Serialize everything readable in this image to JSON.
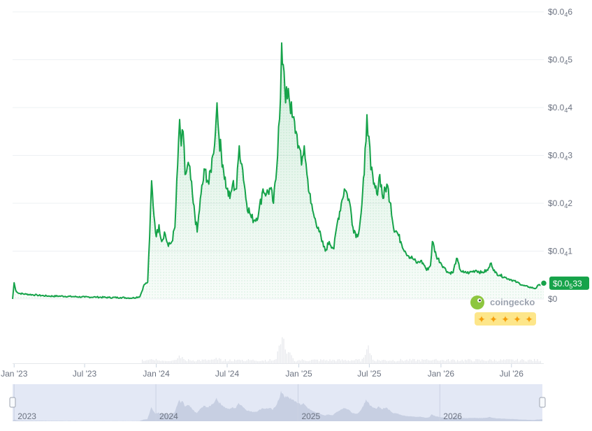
{
  "chart_data": {
    "type": "area",
    "title": "",
    "xlabel": "",
    "ylabel": "",
    "grid": true,
    "y_unit": "$",
    "y_tick_labels": [
      {
        "value": 0,
        "label": "$0"
      },
      {
        "value": 1,
        "prefix": "$0.0",
        "sub": "4",
        "suffix": "1"
      },
      {
        "value": 2,
        "prefix": "$0.0",
        "sub": "4",
        "suffix": "2"
      },
      {
        "value": 3,
        "prefix": "$0.0",
        "sub": "4",
        "suffix": "3"
      },
      {
        "value": 4,
        "prefix": "$0.0",
        "sub": "4",
        "suffix": "4"
      },
      {
        "value": 5,
        "prefix": "$0.0",
        "sub": "4",
        "suffix": "5"
      },
      {
        "value": 6,
        "prefix": "$0.0",
        "sub": "4",
        "suffix": "6"
      }
    ],
    "y_range_units_of_1e-5": [
      0,
      6
    ],
    "x_tick_labels": [
      {
        "date": "2023-01-01",
        "label": "Jan '23"
      },
      {
        "date": "2023-07-01",
        "label": "Jul '23"
      },
      {
        "date": "2024-01-01",
        "label": "Jan '24"
      },
      {
        "date": "2024-07-01",
        "label": "Jul '24"
      },
      {
        "date": "2025-01-01",
        "label": "Jan '25"
      },
      {
        "date": "2025-07-01",
        "label": "Jul '25"
      },
      {
        "date": "2026-01-01",
        "label": "Jan '26"
      },
      {
        "date": "2026-07-01",
        "label": "Jul '26"
      }
    ],
    "x_range": [
      "2022-12-28",
      "2026-09-22"
    ],
    "navigator_labels": [
      {
        "date": "2023-01-01",
        "label": "2023"
      },
      {
        "date": "2024-01-01",
        "label": "2024"
      },
      {
        "date": "2025-01-01",
        "label": "2025"
      },
      {
        "date": "2026-01-01",
        "label": "2026"
      }
    ],
    "series": [
      {
        "color": "#16a34a",
        "points": [
          [
            "2022-12-28",
            0.0
          ],
          [
            "2023-01-01",
            0.34
          ],
          [
            "2023-01-05",
            0.18
          ],
          [
            "2023-01-12",
            0.12
          ],
          [
            "2023-02-01",
            0.1
          ],
          [
            "2023-03-01",
            0.08
          ],
          [
            "2023-04-01",
            0.06
          ],
          [
            "2023-05-01",
            0.06
          ],
          [
            "2023-06-01",
            0.05
          ],
          [
            "2023-07-01",
            0.04
          ],
          [
            "2023-08-01",
            0.04
          ],
          [
            "2023-09-01",
            0.03
          ],
          [
            "2023-10-01",
            0.03
          ],
          [
            "2023-11-01",
            0.02
          ],
          [
            "2023-11-20",
            0.05
          ],
          [
            "2023-12-01",
            0.3
          ],
          [
            "2023-12-10",
            0.35
          ],
          [
            "2023-12-15",
            1.3
          ],
          [
            "2023-12-20",
            2.47
          ],
          [
            "2023-12-24",
            1.95
          ],
          [
            "2024-01-01",
            1.3
          ],
          [
            "2024-01-08",
            1.55
          ],
          [
            "2024-01-15",
            1.2
          ],
          [
            "2024-01-22",
            1.4
          ],
          [
            "2024-02-01",
            1.1
          ],
          [
            "2024-02-10",
            1.2
          ],
          [
            "2024-02-18",
            1.5
          ],
          [
            "2024-02-25",
            2.8
          ],
          [
            "2024-03-01",
            3.75
          ],
          [
            "2024-03-05",
            3.2
          ],
          [
            "2024-03-10",
            3.5
          ],
          [
            "2024-03-15",
            2.6
          ],
          [
            "2024-03-25",
            2.8
          ],
          [
            "2024-04-05",
            2.0
          ],
          [
            "2024-04-15",
            1.4
          ],
          [
            "2024-04-25",
            2.2
          ],
          [
            "2024-05-05",
            2.7
          ],
          [
            "2024-05-15",
            2.4
          ],
          [
            "2024-05-25",
            3.0
          ],
          [
            "2024-06-01",
            3.5
          ],
          [
            "2024-06-05",
            4.1
          ],
          [
            "2024-06-10",
            3.4
          ],
          [
            "2024-06-20",
            2.8
          ],
          [
            "2024-06-30",
            2.3
          ],
          [
            "2024-07-08",
            2.1
          ],
          [
            "2024-07-15",
            2.4
          ],
          [
            "2024-07-25",
            2.3
          ],
          [
            "2024-08-01",
            3.2
          ],
          [
            "2024-08-10",
            2.7
          ],
          [
            "2024-08-20",
            2.0
          ],
          [
            "2024-09-01",
            1.7
          ],
          [
            "2024-09-10",
            1.65
          ],
          [
            "2024-09-20",
            1.8
          ],
          [
            "2024-10-01",
            2.3
          ],
          [
            "2024-10-10",
            2.2
          ],
          [
            "2024-10-20",
            2.3
          ],
          [
            "2024-10-28",
            2.0
          ],
          [
            "2024-11-05",
            2.7
          ],
          [
            "2024-11-10",
            3.6
          ],
          [
            "2024-11-15",
            4.2
          ],
          [
            "2024-11-18",
            5.35
          ],
          [
            "2024-11-22",
            4.9
          ],
          [
            "2024-11-28",
            4.1
          ],
          [
            "2024-12-05",
            4.4
          ],
          [
            "2024-12-15",
            3.8
          ],
          [
            "2024-12-25",
            3.5
          ],
          [
            "2025-01-01",
            3.2
          ],
          [
            "2025-01-08",
            2.8
          ],
          [
            "2025-01-15",
            3.2
          ],
          [
            "2025-01-22",
            2.6
          ],
          [
            "2025-02-01",
            2.0
          ],
          [
            "2025-02-10",
            1.7
          ],
          [
            "2025-02-20",
            1.5
          ],
          [
            "2025-03-01",
            1.2
          ],
          [
            "2025-03-10",
            1.0
          ],
          [
            "2025-03-20",
            1.2
          ],
          [
            "2025-04-01",
            1.05
          ],
          [
            "2025-04-10",
            1.6
          ],
          [
            "2025-04-20",
            2.0
          ],
          [
            "2025-04-28",
            2.3
          ],
          [
            "2025-05-05",
            2.2
          ],
          [
            "2025-05-12",
            2.0
          ],
          [
            "2025-05-20",
            1.5
          ],
          [
            "2025-06-01",
            1.3
          ],
          [
            "2025-06-10",
            1.8
          ],
          [
            "2025-06-18",
            2.6
          ],
          [
            "2025-06-25",
            3.85
          ],
          [
            "2025-06-30",
            3.4
          ],
          [
            "2025-07-05",
            2.7
          ],
          [
            "2025-07-12",
            2.4
          ],
          [
            "2025-07-20",
            2.2
          ],
          [
            "2025-07-28",
            2.6
          ],
          [
            "2025-08-05",
            2.1
          ],
          [
            "2025-08-15",
            2.4
          ],
          [
            "2025-08-25",
            2.0
          ],
          [
            "2025-09-01",
            1.5
          ],
          [
            "2025-09-10",
            1.4
          ],
          [
            "2025-09-20",
            1.2
          ],
          [
            "2025-10-01",
            1.0
          ],
          [
            "2025-10-10",
            0.9
          ],
          [
            "2025-10-20",
            0.85
          ],
          [
            "2025-11-01",
            0.75
          ],
          [
            "2025-11-10",
            0.8
          ],
          [
            "2025-11-20",
            0.7
          ],
          [
            "2025-11-25",
            0.6
          ],
          [
            "2025-12-05",
            0.7
          ],
          [
            "2025-12-10",
            1.2
          ],
          [
            "2025-12-20",
            0.9
          ],
          [
            "2026-01-01",
            0.75
          ],
          [
            "2026-01-10",
            0.65
          ],
          [
            "2026-01-20",
            0.55
          ],
          [
            "2026-02-01",
            0.55
          ],
          [
            "2026-02-10",
            0.85
          ],
          [
            "2026-02-20",
            0.6
          ],
          [
            "2026-03-01",
            0.55
          ],
          [
            "2026-03-15",
            0.55
          ],
          [
            "2026-04-01",
            0.6
          ],
          [
            "2026-04-15",
            0.55
          ],
          [
            "2026-05-01",
            0.6
          ],
          [
            "2026-05-10",
            0.75
          ],
          [
            "2026-05-20",
            0.55
          ],
          [
            "2026-06-01",
            0.5
          ],
          [
            "2026-06-15",
            0.45
          ],
          [
            "2026-07-01",
            0.4
          ],
          [
            "2026-07-15",
            0.35
          ],
          [
            "2026-08-01",
            0.28
          ],
          [
            "2026-08-15",
            0.25
          ],
          [
            "2026-09-01",
            0.22
          ],
          [
            "2026-09-10",
            0.3
          ],
          [
            "2026-09-22",
            0.33
          ]
        ]
      }
    ],
    "volume_series": {
      "color": "#e5e7eb",
      "points": [
        [
          "2023-12-20",
          0.15
        ],
        [
          "2024-02-28",
          0.35
        ],
        [
          "2024-06-05",
          0.2
        ],
        [
          "2024-08-01",
          0.12
        ],
        [
          "2024-11-18",
          1.0
        ],
        [
          "2024-12-05",
          0.4
        ],
        [
          "2025-06-25",
          0.7
        ],
        [
          "2025-12-10",
          0.15
        ]
      ]
    },
    "current_price": {
      "prefix": "$0.0",
      "sub": "5",
      "suffix": "33"
    },
    "watermark": "coingecko",
    "rating_stars": 5
  },
  "colors": {
    "line": "#16a34a",
    "badge": "#16a34a",
    "grid": "#eef0f3",
    "axis_text": "#6b7280",
    "navigator_bg": "#e3e8f5",
    "navigator_area": "#c7cfe2"
  }
}
